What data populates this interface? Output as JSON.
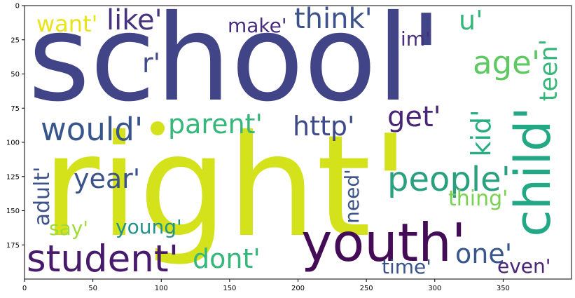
{
  "image": {
    "kind": "wordcloud",
    "x_ticks": [
      "0",
      "50",
      "100",
      "150",
      "200",
      "250",
      "300",
      "350"
    ],
    "y_ticks": [
      "0",
      "25",
      "50",
      "75",
      "100",
      "125",
      "150",
      "175"
    ]
  },
  "words": [
    {
      "text": "school'",
      "color": "#414487",
      "rotate": false
    },
    {
      "text": "right'",
      "color": "#d3e21b",
      "rotate": false
    },
    {
      "text": "youth'",
      "color": "#440c57",
      "rotate": false
    },
    {
      "text": "student'",
      "color": "#481a6c",
      "rotate": false
    },
    {
      "text": "child'",
      "color": "#22a884",
      "rotate": true
    },
    {
      "text": "people'",
      "color": "#2aa07f",
      "rotate": false
    },
    {
      "text": "would'",
      "color": "#39568c",
      "rotate": false
    },
    {
      "text": "parent'",
      "color": "#35b779",
      "rotate": false
    },
    {
      "text": "think'",
      "color": "#3b528b",
      "rotate": false
    },
    {
      "text": "like'",
      "color": "#46327e",
      "rotate": false
    },
    {
      "text": "age'",
      "color": "#5ec962",
      "rotate": false
    },
    {
      "text": "http'",
      "color": "#3e4989",
      "rotate": false
    },
    {
      "text": "get'",
      "color": "#482576",
      "rotate": false
    },
    {
      "text": "year'",
      "color": "#3b528b",
      "rotate": false
    },
    {
      "text": "dont'",
      "color": "#35b779",
      "rotate": false
    },
    {
      "text": "one'",
      "color": "#39568c",
      "rotate": false
    },
    {
      "text": "kid'",
      "color": "#27ad81",
      "rotate": true
    },
    {
      "text": "teen'",
      "color": "#35b779",
      "rotate": true
    },
    {
      "text": "want'",
      "color": "#e8e419",
      "rotate": false
    },
    {
      "text": "make'",
      "color": "#472d7b",
      "rotate": false
    },
    {
      "text": "u'",
      "color": "#35b779",
      "rotate": false
    },
    {
      "text": "im'",
      "color": "#46307e",
      "rotate": false
    },
    {
      "text": "r'",
      "color": "#3e4a89",
      "rotate": false
    },
    {
      "text": "young'",
      "color": "#21918c",
      "rotate": false
    },
    {
      "text": "say'",
      "color": "#a2da37",
      "rotate": false
    },
    {
      "text": "adult'",
      "color": "#3b528b",
      "rotate": true
    },
    {
      "text": "need'",
      "color": "#3b528b",
      "rotate": true
    },
    {
      "text": "thing'",
      "color": "#7ad151",
      "rotate": false
    },
    {
      "text": "time'",
      "color": "#3b528b",
      "rotate": false
    },
    {
      "text": "even'",
      "color": "#482576",
      "rotate": false
    }
  ]
}
